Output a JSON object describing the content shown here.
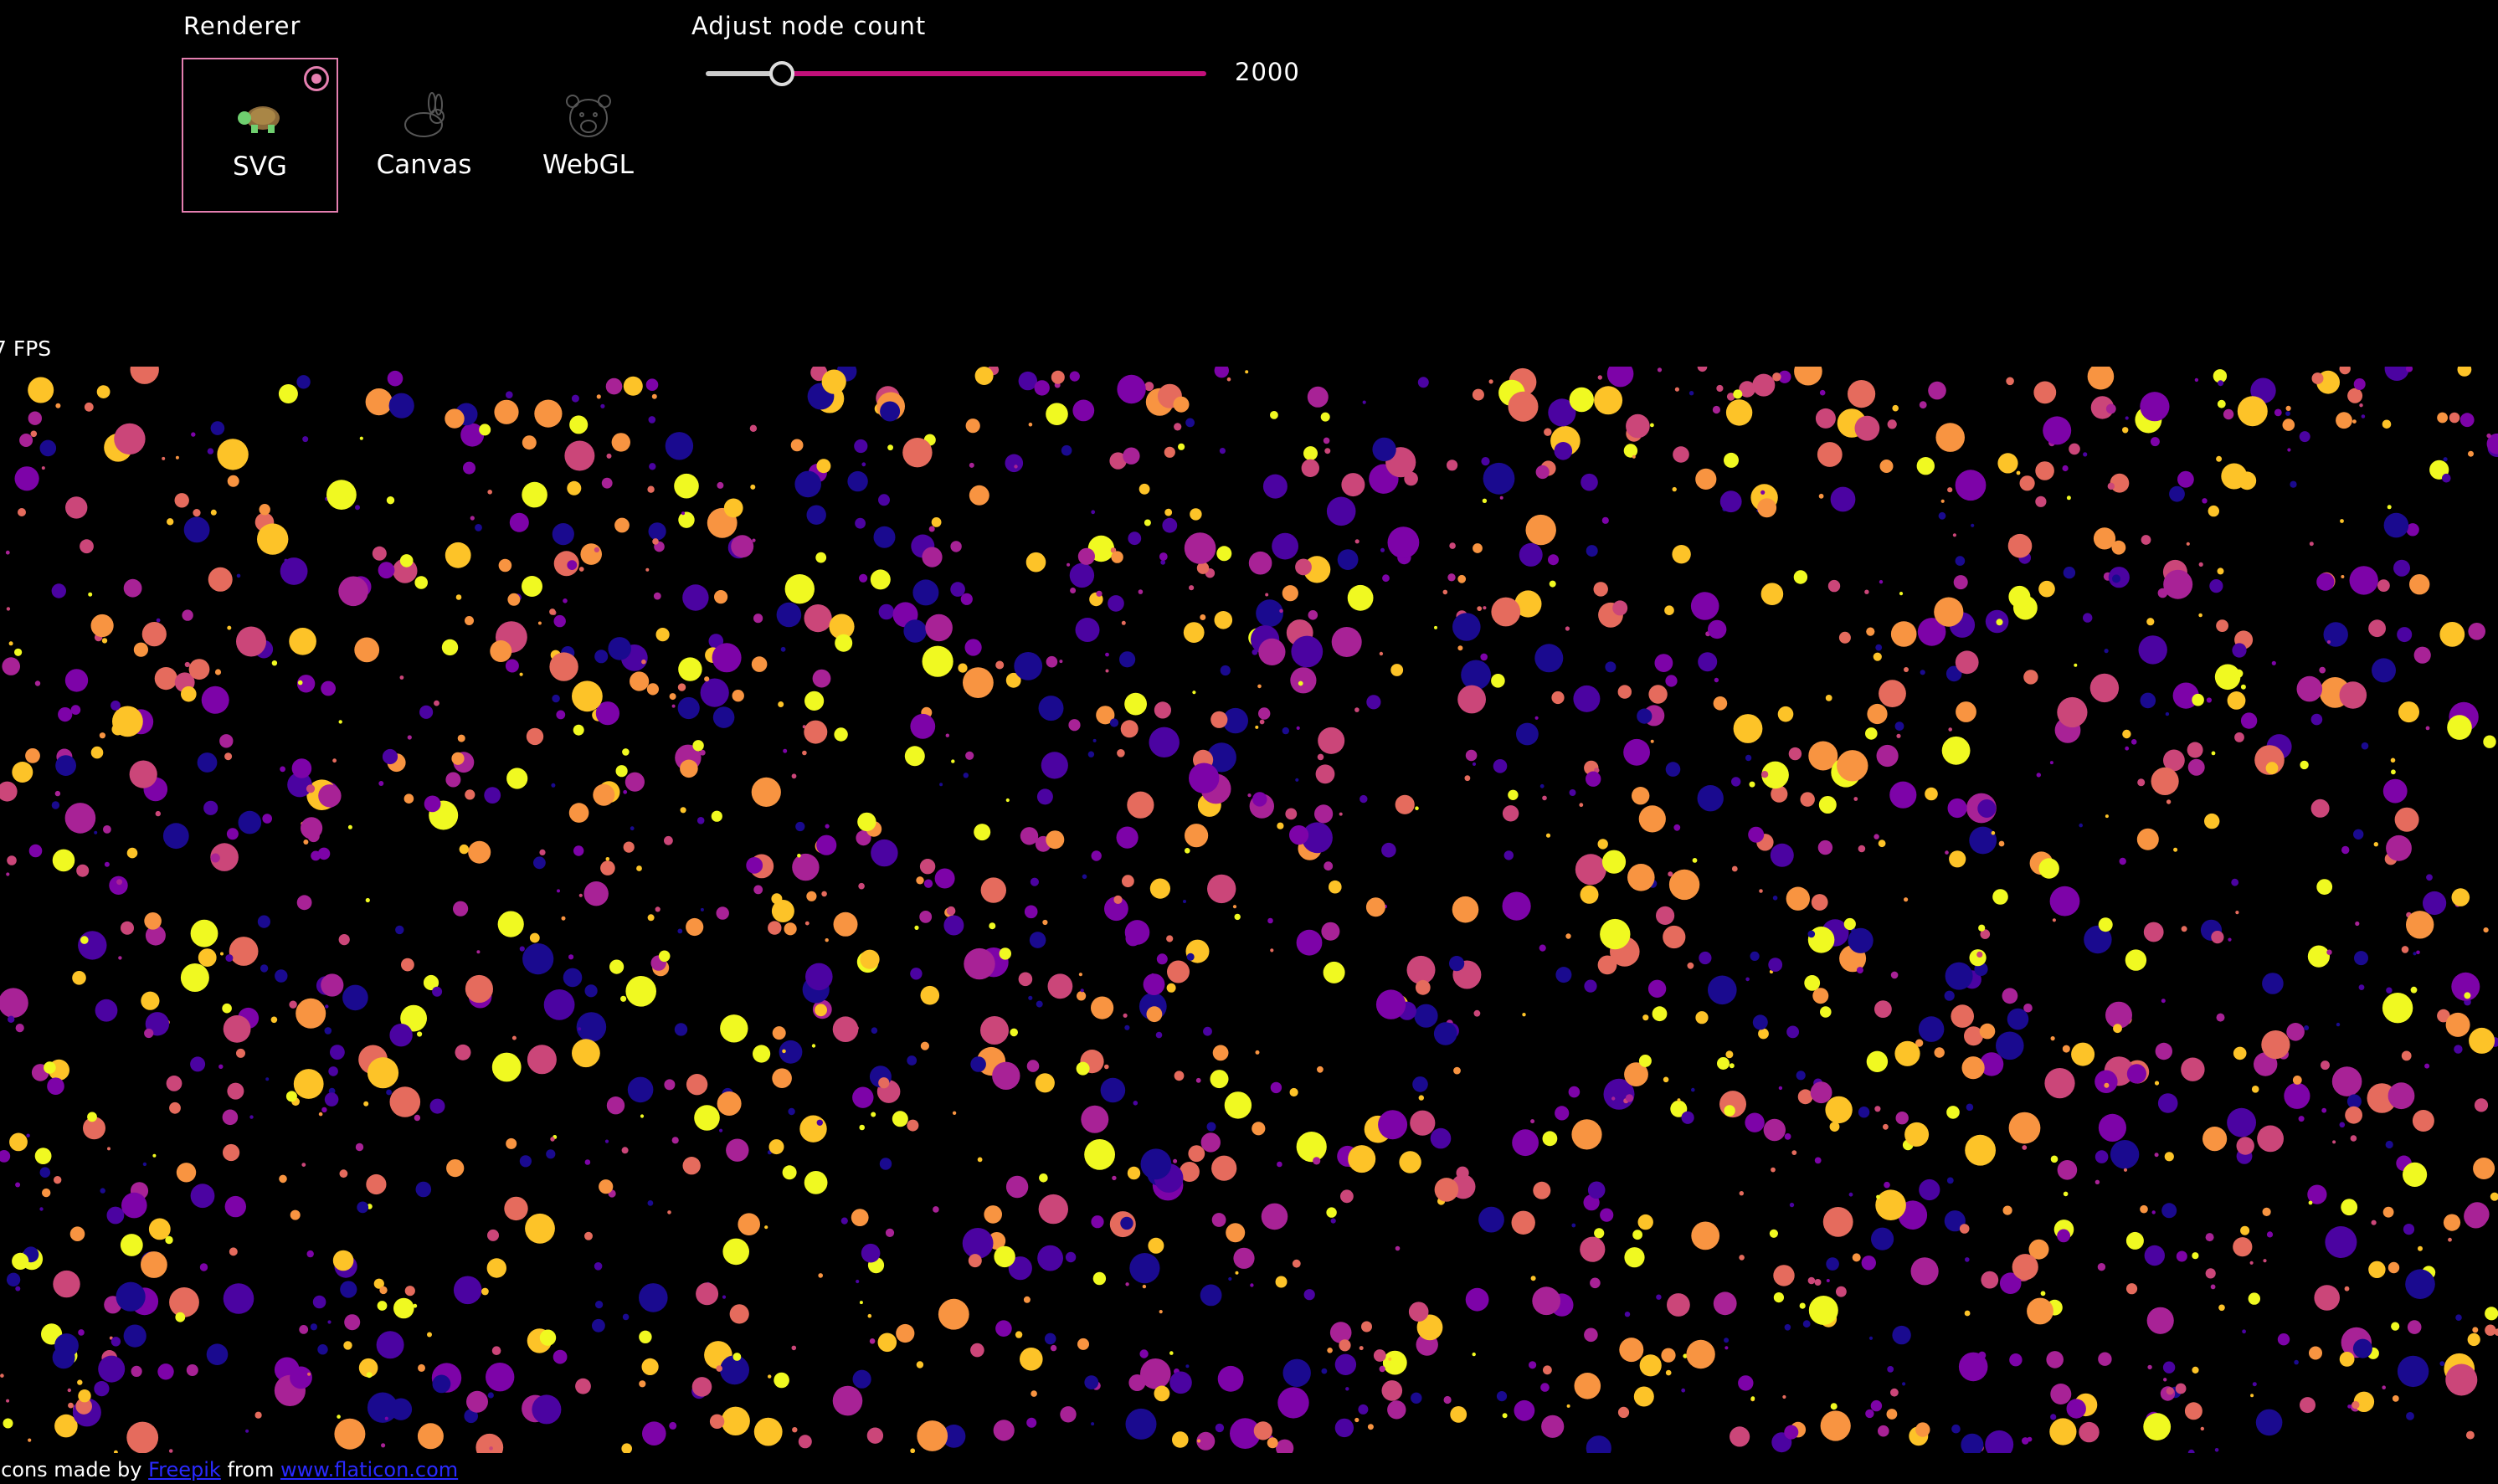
{
  "renderer": {
    "label": "Renderer",
    "options": [
      {
        "label": "SVG"
      },
      {
        "label": "Canvas"
      },
      {
        "label": "WebGL"
      }
    ]
  },
  "node_count": {
    "label": "Adjust node count",
    "value": 2000
  },
  "fps": "7 FPS",
  "footer": {
    "prefix": "Icons made by",
    "author": "Freepik",
    "middle": "from",
    "site": "www.flaticon.com"
  }
}
